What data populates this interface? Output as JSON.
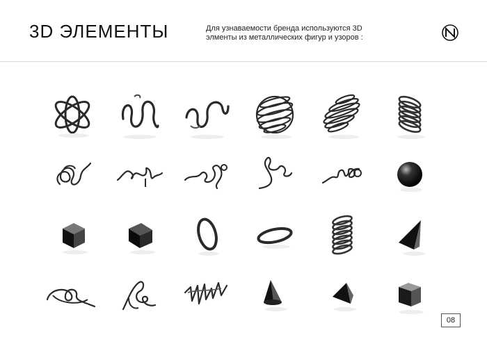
{
  "header": {
    "title": "3D ЭЛЕМЕНТЫ",
    "description_line1": "Для узнаваемости бренда используются 3D",
    "description_line2": "элменты из металлических фигур и узоров :"
  },
  "elements": [
    "atom-icon",
    "zigzag-coil-icon",
    "spring-wave-icon",
    "wire-sphere-icon",
    "wire-spiral-icon",
    "metal-spring-icon",
    "scribble-coil-icon",
    "scribble-wire-icon",
    "scribble-wire-icon",
    "scribble-wire-icon",
    "scribble-wire-icon",
    "chrome-sphere-icon",
    "chrome-cube-icon",
    "dark-cube-icon",
    "chrome-ring-icon",
    "flat-ring-icon",
    "metal-spring-icon",
    "chrome-cone-icon",
    "scribble-loop-icon",
    "scribble-loop-icon",
    "scribble-zigzag-icon",
    "chrome-cone-icon",
    "chrome-pyramid-icon",
    "chrome-cube-icon"
  ],
  "footer": {
    "page_number": "08"
  }
}
